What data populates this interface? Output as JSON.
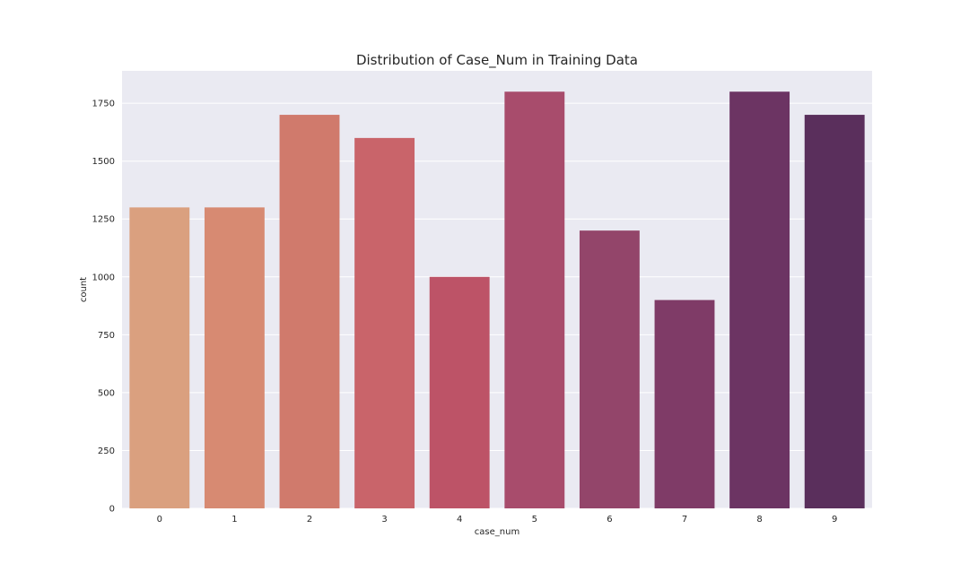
{
  "chart_data": {
    "type": "bar",
    "title": "Distribution of Case_Num in Training Data",
    "xlabel": "case_num",
    "ylabel": "count",
    "categories": [
      "0",
      "1",
      "2",
      "3",
      "4",
      "5",
      "6",
      "7",
      "8",
      "9"
    ],
    "values": [
      1300,
      1300,
      1700,
      1600,
      1000,
      1800,
      1200,
      900,
      1800,
      1700
    ],
    "ylim": [
      0,
      1890
    ],
    "yticks": [
      0,
      250,
      500,
      750,
      1000,
      1250,
      1500,
      1750
    ],
    "ytick_labels": [
      "0",
      "250",
      "500",
      "750",
      "1000",
      "1250",
      "1500",
      "1750"
    ],
    "grid": true,
    "legend": "none",
    "colors": {
      "plot_background": "#eaeaf2",
      "grid": "#ffffff",
      "bars": [
        "#daa07f",
        "#d78a72",
        "#d07a6c",
        "#c9646a",
        "#bd5367",
        "#a84c6c",
        "#93456a",
        "#7f3b67",
        "#6c3463",
        "#5a2f5c"
      ]
    }
  }
}
